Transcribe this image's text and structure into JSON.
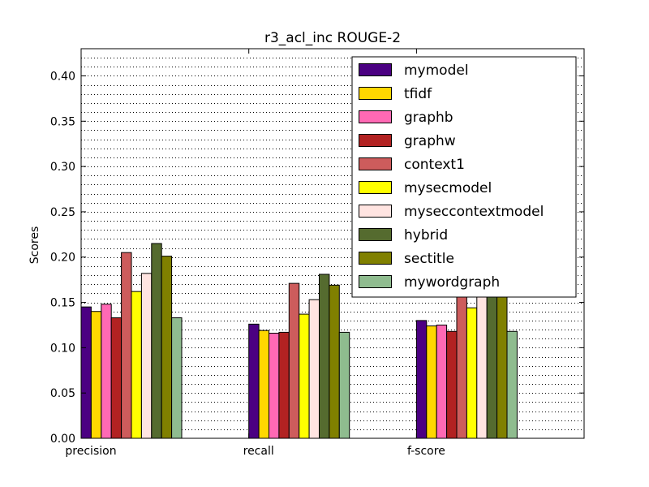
{
  "chart_data": {
    "type": "bar",
    "title": "r3_acl_inc ROUGE-2",
    "ylabel": "Scores",
    "xlabel": "",
    "categories": [
      "precision",
      "recall",
      "f-score"
    ],
    "ylim": [
      0,
      0.43
    ],
    "yticks": [
      0.0,
      0.05,
      0.1,
      0.15,
      0.2,
      0.25,
      0.3,
      0.35,
      0.4
    ],
    "ytick_labels": [
      "0.00",
      "0.05",
      "0.10",
      "0.15",
      "0.20",
      "0.25",
      "0.30",
      "0.35",
      "0.40"
    ],
    "grid": "horizontal dotted",
    "legend_position": "top-right",
    "series": [
      {
        "name": "mymodel",
        "color": "#4b0082",
        "values": [
          0.145,
          0.126,
          0.13
        ]
      },
      {
        "name": "tfidf",
        "color": "#ffd700",
        "values": [
          0.14,
          0.119,
          0.124
        ]
      },
      {
        "name": "graphb",
        "color": "#ff69b4",
        "values": [
          0.148,
          0.116,
          0.125
        ]
      },
      {
        "name": "graphw",
        "color": "#b22222",
        "values": [
          0.133,
          0.117,
          0.118
        ]
      },
      {
        "name": "context1",
        "color": "#cd5c5c",
        "values": [
          0.205,
          0.171,
          0.18
        ]
      },
      {
        "name": "mysecmodel",
        "color": "#ffff00",
        "values": [
          0.162,
          0.137,
          0.144
        ]
      },
      {
        "name": "myseccontextmodel",
        "color": "#ffe4e1",
        "values": [
          0.182,
          0.153,
          0.162
        ]
      },
      {
        "name": "hybrid",
        "color": "#556b2f",
        "values": [
          0.215,
          0.181,
          0.193
        ]
      },
      {
        "name": "sectitle",
        "color": "#808000",
        "values": [
          0.201,
          0.169,
          0.18
        ]
      },
      {
        "name": "mywordgraph",
        "color": "#8fbc8f",
        "values": [
          0.133,
          0.117,
          0.118
        ]
      }
    ]
  }
}
